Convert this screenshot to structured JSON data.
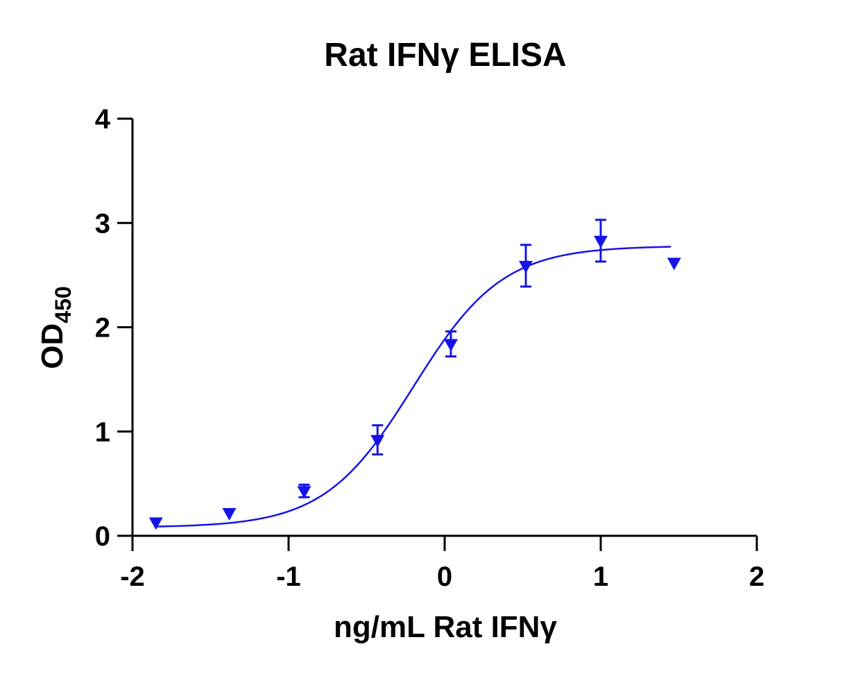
{
  "chart_data": {
    "type": "scatter",
    "title": "Rat IFNγ ELISA",
    "xlabel": "ng/mL Rat IFNγ",
    "ylabel_main": "OD",
    "ylabel_sub": "450",
    "xlim": [
      -2,
      2
    ],
    "ylim": [
      0,
      4
    ],
    "x_ticks": [
      -2,
      -1,
      0,
      1,
      2
    ],
    "y_ticks": [
      0,
      1,
      2,
      3,
      4
    ],
    "x_tick_labels": [
      "-2",
      "-1",
      "0",
      "1",
      "2"
    ],
    "y_tick_labels": [
      "0",
      "1",
      "2",
      "3",
      "4"
    ],
    "color": "#1414e6",
    "marker": "down-triangle",
    "series": [
      {
        "points": [
          {
            "x": -1.85,
            "y": 0.13,
            "err": 0.0
          },
          {
            "x": -1.38,
            "y": 0.22,
            "err": 0.0
          },
          {
            "x": -0.9,
            "y": 0.43,
            "err": 0.06
          },
          {
            "x": -0.43,
            "y": 0.92,
            "err": 0.14
          },
          {
            "x": 0.04,
            "y": 1.84,
            "err": 0.12
          },
          {
            "x": 0.52,
            "y": 2.59,
            "err": 0.2
          },
          {
            "x": 1.0,
            "y": 2.83,
            "err": 0.2
          },
          {
            "x": 1.47,
            "y": 2.62,
            "err": 0.0
          }
        ]
      }
    ],
    "fit_curve": {
      "model": "4PL",
      "bottom": 0.08,
      "top": 2.78,
      "logEC50": -0.2,
      "hill": 1.52,
      "x_range": [
        -1.85,
        1.45
      ]
    }
  }
}
